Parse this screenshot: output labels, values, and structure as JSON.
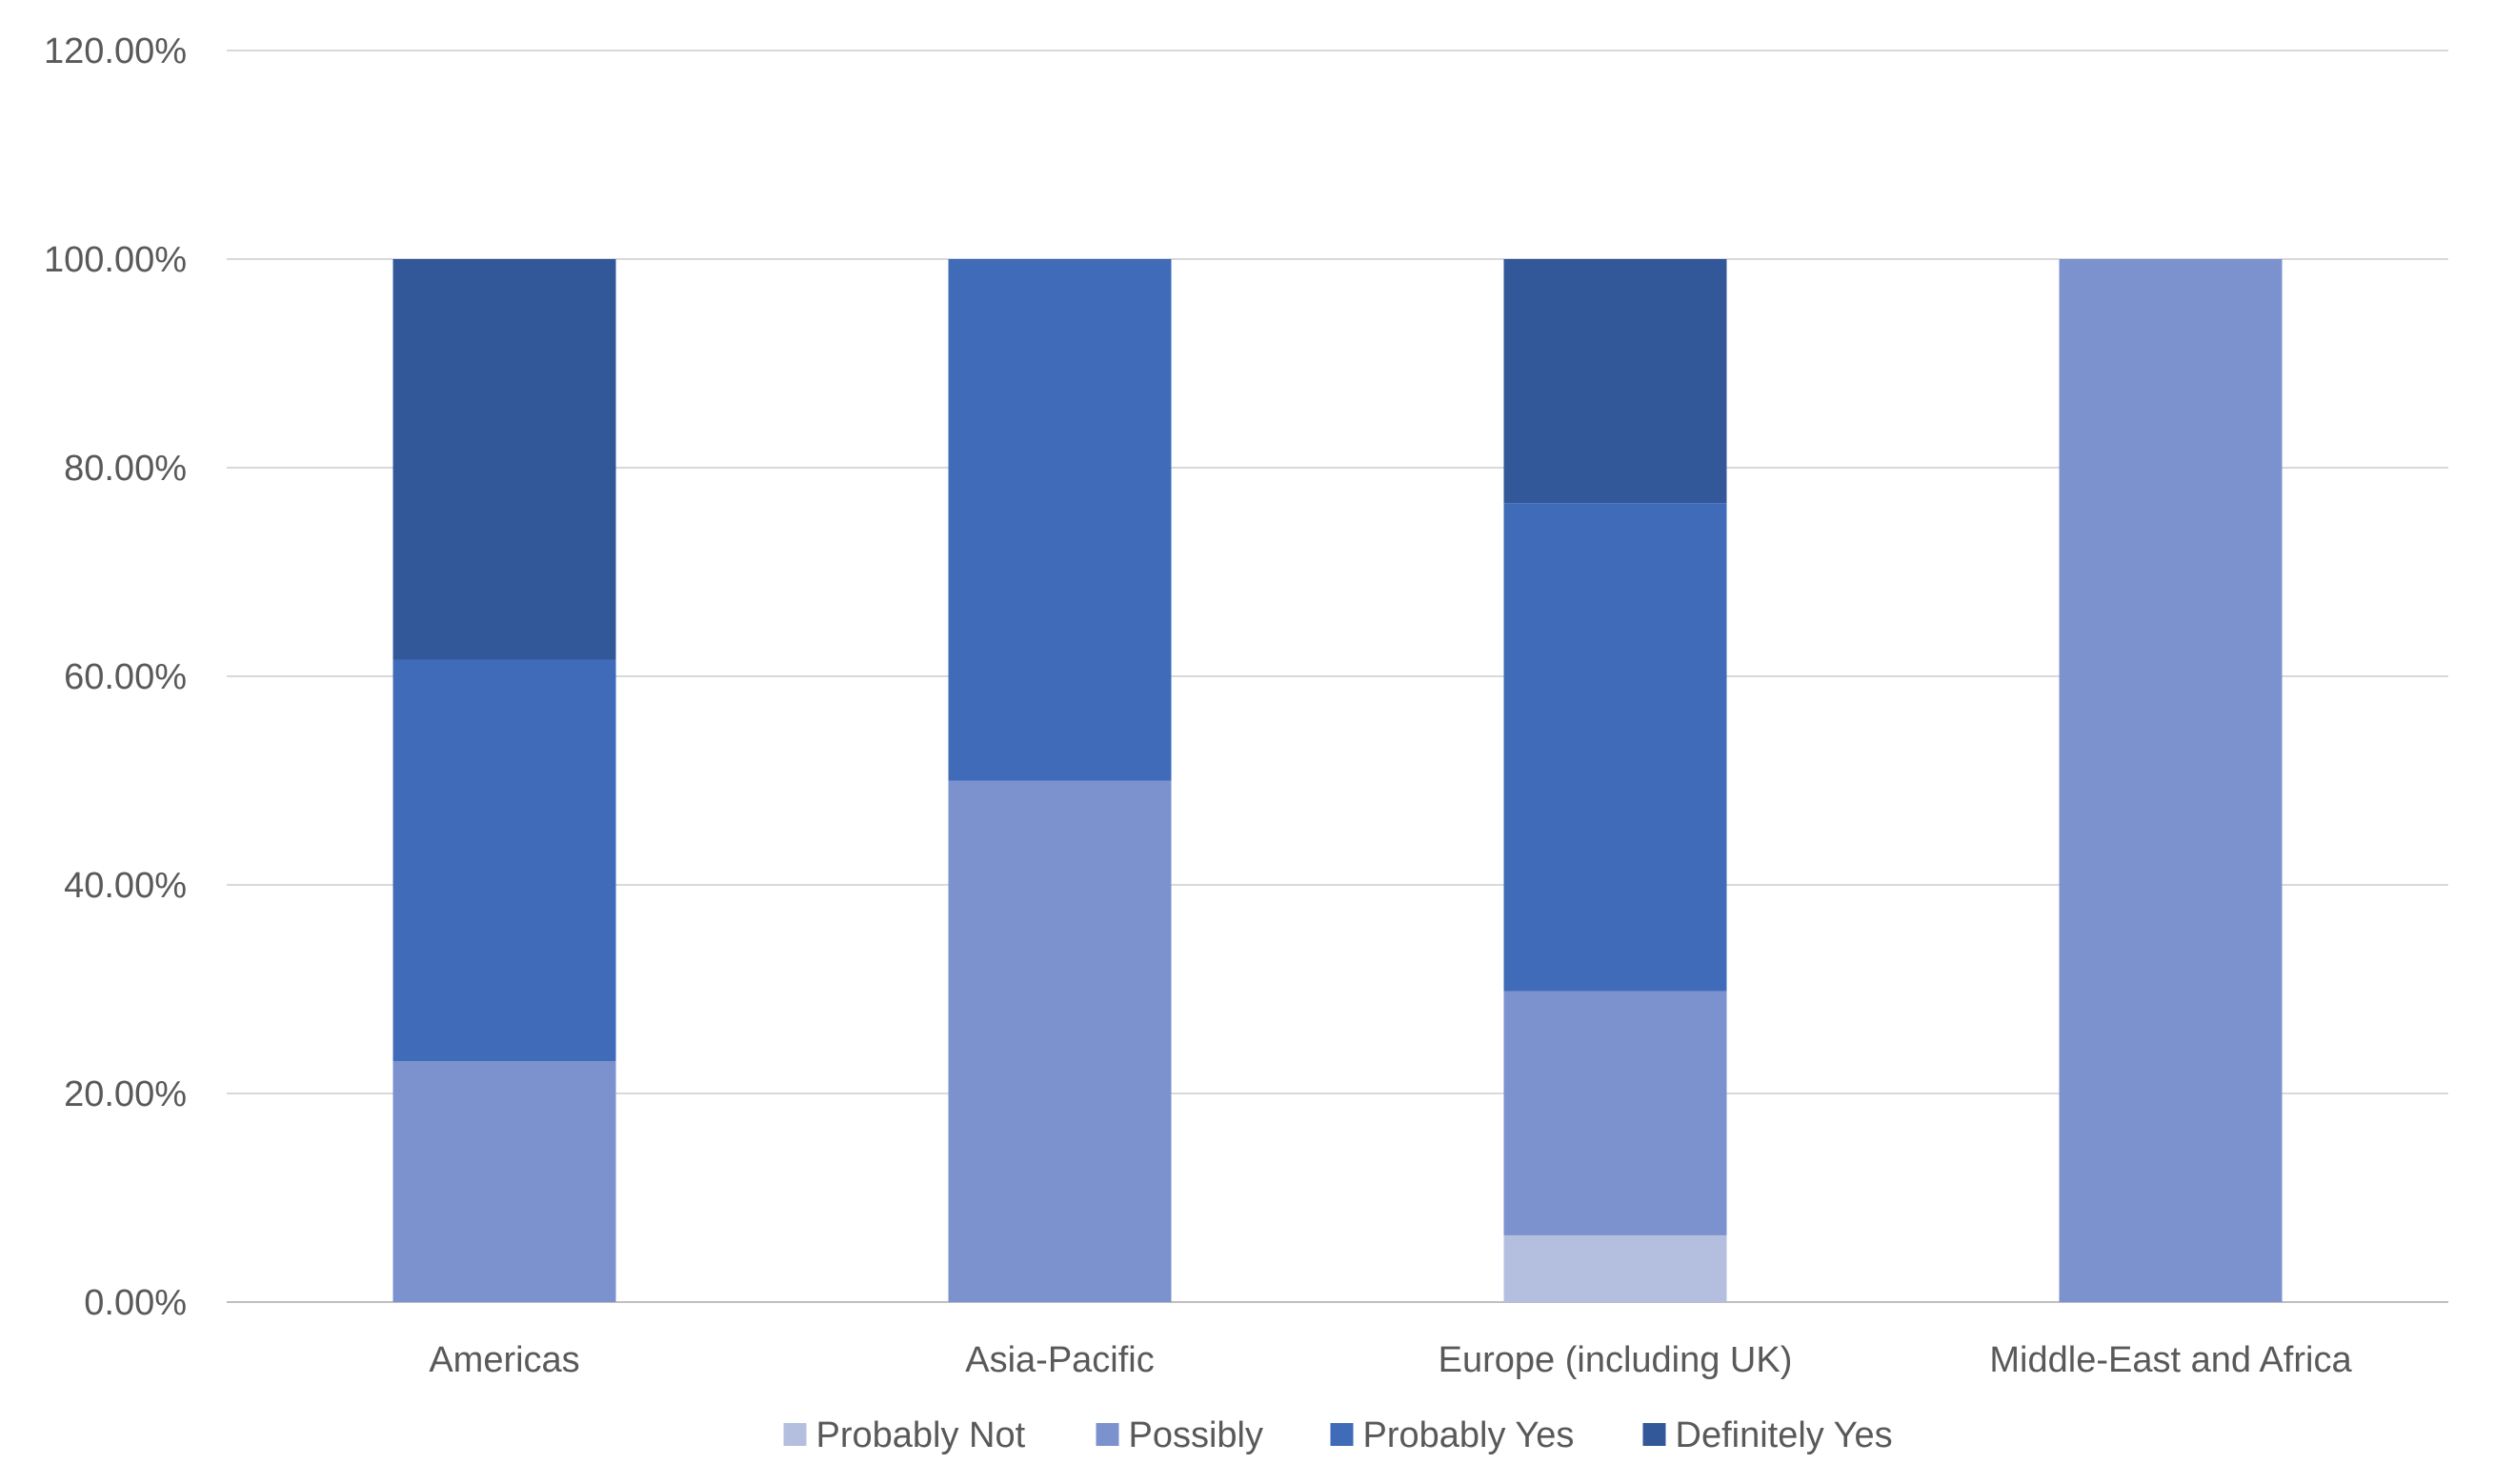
{
  "chart_data": {
    "type": "bar",
    "stacked": true,
    "categories": [
      "Americas",
      "Asia-Pacific",
      "Europe (including UK)",
      "Middle-East and Africa"
    ],
    "series": [
      {
        "name": "Probably Not",
        "color": "#B4BFE0",
        "values": [
          0,
          0,
          6.4,
          0
        ]
      },
      {
        "name": "Possibly",
        "color": "#7B92CF",
        "values": [
          23.1,
          50.0,
          23.4,
          100.0
        ]
      },
      {
        "name": "Probably Yes",
        "color": "#3F6BB9",
        "values": [
          38.5,
          50.0,
          46.8,
          0
        ]
      },
      {
        "name": "Definitely Yes",
        "color": "#325899",
        "values": [
          38.4,
          0,
          23.4,
          0
        ]
      }
    ],
    "ylim": [
      0,
      120
    ],
    "yticks": [
      "0.00%",
      "20.00%",
      "40.00%",
      "60.00%",
      "80.00%",
      "100.00%",
      "120.00%"
    ],
    "grid": true,
    "legend_position": "bottom",
    "title": "",
    "xlabel": "",
    "ylabel": ""
  }
}
